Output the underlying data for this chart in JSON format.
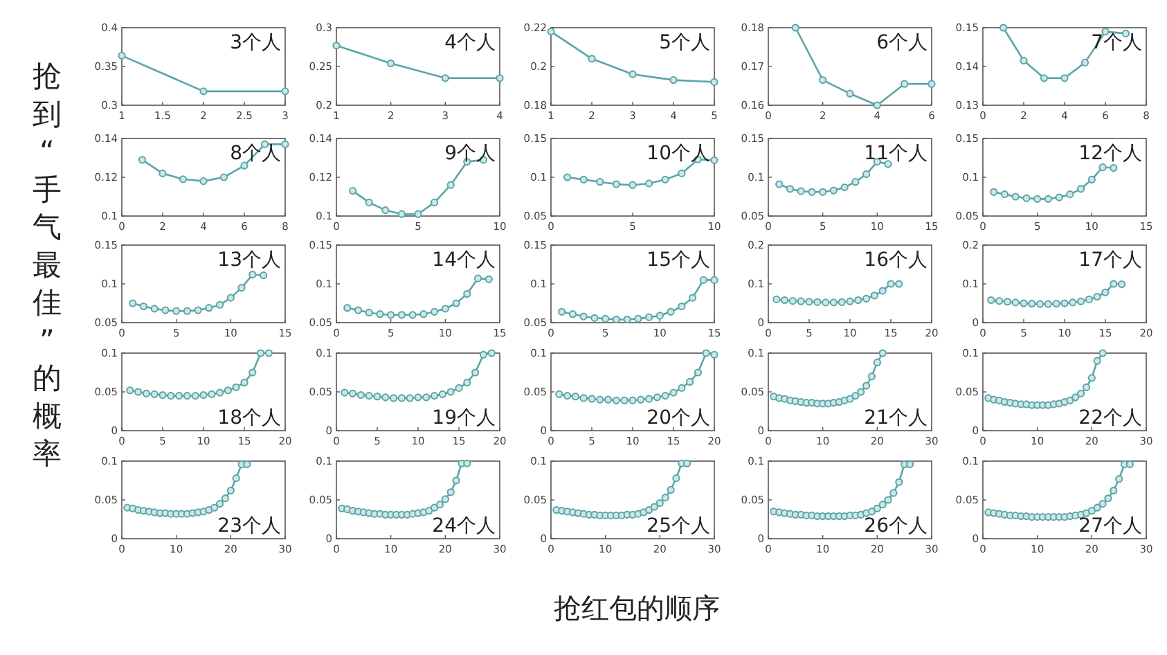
{
  "chart_data": [
    {
      "type": "line",
      "ylabel": "抢到“手气最佳”的概率",
      "annotations": [
        "3个人"
      ],
      "x": [
        1,
        2,
        3
      ],
      "values": [
        0.364,
        0.318,
        0.318
      ],
      "xlim": [
        1,
        3
      ],
      "ylim": [
        0.3,
        0.4
      ],
      "xticks": [
        1,
        1.5,
        2,
        2.5,
        3
      ],
      "yticks": [
        0.3,
        0.35,
        0.4
      ],
      "color": "#5aa6a6",
      "marker": "circle"
    },
    {
      "type": "line",
      "annotations": [
        "4个人"
      ],
      "x": [
        1,
        2,
        3,
        4
      ],
      "values": [
        0.277,
        0.254,
        0.235,
        0.235
      ],
      "xlim": [
        1,
        4
      ],
      "ylim": [
        0.2,
        0.3
      ],
      "xticks": [
        1,
        2,
        3,
        4
      ],
      "yticks": [
        0.2,
        0.25,
        0.3
      ],
      "color": "#5aa6a6",
      "marker": "circle"
    },
    {
      "type": "line",
      "annotations": [
        "5个人"
      ],
      "x": [
        1,
        2,
        3,
        4,
        5
      ],
      "values": [
        0.218,
        0.204,
        0.196,
        0.193,
        0.192
      ],
      "xlim": [
        1,
        5
      ],
      "ylim": [
        0.18,
        0.22
      ],
      "xticks": [
        1,
        2,
        3,
        4,
        5
      ],
      "yticks": [
        0.18,
        0.2,
        0.22
      ],
      "color": "#5aa6a6",
      "marker": "circle"
    },
    {
      "type": "line",
      "annotations": [
        "6个人"
      ],
      "x": [
        1,
        2,
        3,
        4,
        5,
        6
      ],
      "values": [
        0.18,
        0.1665,
        0.163,
        0.16,
        0.1655,
        0.1655
      ],
      "xlim": [
        0,
        6
      ],
      "ylim": [
        0.16,
        0.18
      ],
      "xticks": [
        0,
        2,
        4,
        6
      ],
      "yticks": [
        0.16,
        0.17,
        0.18
      ],
      "color": "#5aa6a6",
      "marker": "circle"
    },
    {
      "type": "line",
      "annotations": [
        "7个人"
      ],
      "x": [
        1,
        2,
        3,
        4,
        5,
        6,
        7
      ],
      "values": [
        0.15,
        0.1415,
        0.137,
        0.137,
        0.141,
        0.149,
        0.1485
      ],
      "xlim": [
        0,
        8
      ],
      "ylim": [
        0.13,
        0.15
      ],
      "xticks": [
        0,
        2,
        4,
        6,
        8
      ],
      "yticks": [
        0.13,
        0.14,
        0.15
      ],
      "color": "#5aa6a6",
      "marker": "circle"
    },
    {
      "type": "line",
      "annotations": [
        "8个人"
      ],
      "x": [
        1,
        2,
        3,
        4,
        5,
        6,
        7,
        8
      ],
      "values": [
        0.129,
        0.122,
        0.119,
        0.118,
        0.12,
        0.126,
        0.137,
        0.137
      ],
      "xlim": [
        0,
        8
      ],
      "ylim": [
        0.1,
        0.14
      ],
      "xticks": [
        0,
        2,
        4,
        6,
        8
      ],
      "yticks": [
        0.1,
        0.12,
        0.14
      ],
      "color": "#5aa6a6",
      "marker": "circle"
    },
    {
      "type": "line",
      "annotations": [
        "9个人"
      ],
      "x": [
        1,
        2,
        3,
        4,
        5,
        6,
        7,
        8,
        9
      ],
      "values": [
        0.113,
        0.107,
        0.103,
        0.101,
        0.101,
        0.107,
        0.116,
        0.128,
        0.129
      ],
      "xlim": [
        0,
        10
      ],
      "ylim": [
        0.1,
        0.14
      ],
      "xticks": [
        0,
        5,
        10
      ],
      "yticks": [
        0.1,
        0.12,
        0.14
      ],
      "color": "#5aa6a6",
      "marker": "circle"
    },
    {
      "type": "line",
      "annotations": [
        "10个人"
      ],
      "x": [
        1,
        2,
        3,
        4,
        5,
        6,
        7,
        8,
        9,
        10
      ],
      "values": [
        0.1,
        0.097,
        0.094,
        0.091,
        0.09,
        0.092,
        0.097,
        0.105,
        0.123,
        0.122
      ],
      "xlim": [
        0,
        10
      ],
      "ylim": [
        0.05,
        0.15
      ],
      "xticks": [
        0,
        5,
        10
      ],
      "yticks": [
        0.05,
        0.1,
        0.15
      ],
      "color": "#5aa6a6",
      "marker": "circle"
    },
    {
      "type": "line",
      "annotations": [
        "11个人"
      ],
      "x": [
        1,
        2,
        3,
        4,
        5,
        6,
        7,
        8,
        9,
        10,
        11
      ],
      "values": [
        0.091,
        0.085,
        0.082,
        0.081,
        0.081,
        0.083,
        0.087,
        0.094,
        0.104,
        0.12,
        0.117
      ],
      "xlim": [
        0,
        15
      ],
      "ylim": [
        0.05,
        0.15
      ],
      "xticks": [
        0,
        5,
        10,
        15
      ],
      "yticks": [
        0.05,
        0.1,
        0.15
      ],
      "color": "#5aa6a6",
      "marker": "circle"
    },
    {
      "type": "line",
      "annotations": [
        "12个人"
      ],
      "x": [
        1,
        2,
        3,
        4,
        5,
        6,
        7,
        8,
        9,
        10,
        11,
        12
      ],
      "values": [
        0.081,
        0.078,
        0.075,
        0.073,
        0.072,
        0.072,
        0.074,
        0.078,
        0.085,
        0.097,
        0.113,
        0.112
      ],
      "xlim": [
        0,
        15
      ],
      "ylim": [
        0.05,
        0.15
      ],
      "xticks": [
        0,
        5,
        10,
        15
      ],
      "yticks": [
        0.05,
        0.1,
        0.15
      ],
      "color": "#5aa6a6",
      "marker": "circle"
    },
    {
      "type": "line",
      "annotations": [
        "13个人"
      ],
      "x": [
        1,
        2,
        3,
        4,
        5,
        6,
        7,
        8,
        9,
        10,
        11,
        12,
        13
      ],
      "values": [
        0.075,
        0.071,
        0.068,
        0.066,
        0.065,
        0.065,
        0.066,
        0.069,
        0.073,
        0.082,
        0.095,
        0.112,
        0.111
      ],
      "xlim": [
        0,
        15
      ],
      "ylim": [
        0.05,
        0.15
      ],
      "xticks": [
        0,
        5,
        10,
        15
      ],
      "yticks": [
        0.05,
        0.1,
        0.15
      ],
      "color": "#5aa6a6",
      "marker": "circle"
    },
    {
      "type": "line",
      "annotations": [
        "14个人"
      ],
      "x": [
        1,
        2,
        3,
        4,
        5,
        6,
        7,
        8,
        9,
        10,
        11,
        12,
        13,
        14
      ],
      "values": [
        0.069,
        0.066,
        0.063,
        0.061,
        0.06,
        0.06,
        0.06,
        0.061,
        0.064,
        0.068,
        0.075,
        0.087,
        0.107,
        0.106
      ],
      "xlim": [
        0,
        15
      ],
      "ylim": [
        0.05,
        0.15
      ],
      "xticks": [
        0,
        5,
        10,
        15
      ],
      "yticks": [
        0.05,
        0.1,
        0.15
      ],
      "color": "#5aa6a6",
      "marker": "circle"
    },
    {
      "type": "line",
      "annotations": [
        "15个人"
      ],
      "x": [
        1,
        2,
        3,
        4,
        5,
        6,
        7,
        8,
        9,
        10,
        11,
        12,
        13,
        14,
        15
      ],
      "values": [
        0.064,
        0.061,
        0.058,
        0.056,
        0.055,
        0.054,
        0.054,
        0.055,
        0.057,
        0.059,
        0.064,
        0.071,
        0.082,
        0.105,
        0.105
      ],
      "xlim": [
        0,
        15
      ],
      "ylim": [
        0.05,
        0.15
      ],
      "xticks": [
        0,
        5,
        10,
        15
      ],
      "yticks": [
        0.05,
        0.1,
        0.15
      ],
      "color": "#5aa6a6",
      "marker": "circle"
    },
    {
      "type": "line",
      "annotations": [
        "16个人"
      ],
      "x": [
        1,
        2,
        3,
        4,
        5,
        6,
        7,
        8,
        9,
        10,
        11,
        12,
        13,
        14,
        15,
        16
      ],
      "values": [
        0.06,
        0.058,
        0.056,
        0.055,
        0.054,
        0.053,
        0.052,
        0.052,
        0.053,
        0.055,
        0.058,
        0.062,
        0.07,
        0.082,
        0.1,
        0.1
      ],
      "xlim": [
        0,
        20
      ],
      "ylim": [
        0,
        0.2
      ],
      "xticks": [
        0,
        5,
        10,
        15,
        20
      ],
      "yticks": [
        0,
        0.1,
        0.2
      ],
      "color": "#5aa6a6",
      "marker": "circle"
    },
    {
      "type": "line",
      "annotations": [
        "17个人"
      ],
      "x": [
        1,
        2,
        3,
        4,
        5,
        6,
        7,
        8,
        9,
        10,
        11,
        12,
        13,
        14,
        15,
        16,
        17
      ],
      "values": [
        0.058,
        0.056,
        0.054,
        0.052,
        0.05,
        0.049,
        0.048,
        0.048,
        0.049,
        0.05,
        0.052,
        0.055,
        0.06,
        0.067,
        0.078,
        0.1,
        0.099
      ],
      "xlim": [
        0,
        20
      ],
      "ylim": [
        0,
        0.2
      ],
      "xticks": [
        0,
        5,
        10,
        15,
        20
      ],
      "yticks": [
        0,
        0.1,
        0.2
      ],
      "color": "#5aa6a6",
      "marker": "circle"
    },
    {
      "type": "line",
      "annotations": [
        "18个人"
      ],
      "x": [
        1,
        2,
        3,
        4,
        5,
        6,
        7,
        8,
        9,
        10,
        11,
        12,
        13,
        14,
        15,
        16,
        17,
        18
      ],
      "values": [
        0.052,
        0.05,
        0.048,
        0.047,
        0.046,
        0.045,
        0.045,
        0.045,
        0.045,
        0.046,
        0.047,
        0.049,
        0.052,
        0.056,
        0.062,
        0.075,
        0.1,
        0.1
      ],
      "xlim": [
        0,
        20
      ],
      "ylim": [
        0,
        0.1
      ],
      "xticks": [
        0,
        5,
        10,
        15,
        20
      ],
      "yticks": [
        0,
        0.05,
        0.1
      ],
      "color": "#5aa6a6",
      "marker": "circle"
    },
    {
      "type": "line",
      "annotations": [
        "19个人"
      ],
      "x": [
        1,
        2,
        3,
        4,
        5,
        6,
        7,
        8,
        9,
        10,
        11,
        12,
        13,
        14,
        15,
        16,
        17,
        18,
        19
      ],
      "values": [
        0.049,
        0.048,
        0.046,
        0.045,
        0.044,
        0.043,
        0.042,
        0.042,
        0.042,
        0.043,
        0.043,
        0.045,
        0.047,
        0.05,
        0.055,
        0.062,
        0.075,
        0.098,
        0.1
      ],
      "xlim": [
        0,
        20
      ],
      "ylim": [
        0,
        0.1
      ],
      "xticks": [
        0,
        5,
        10,
        15,
        20
      ],
      "yticks": [
        0,
        0.05,
        0.1
      ],
      "color": "#5aa6a6",
      "marker": "circle"
    },
    {
      "type": "line",
      "annotations": [
        "20个人"
      ],
      "x": [
        1,
        2,
        3,
        4,
        5,
        6,
        7,
        8,
        9,
        10,
        11,
        12,
        13,
        14,
        15,
        16,
        17,
        18,
        19,
        20
      ],
      "values": [
        0.047,
        0.045,
        0.044,
        0.042,
        0.041,
        0.04,
        0.04,
        0.039,
        0.039,
        0.039,
        0.04,
        0.041,
        0.043,
        0.045,
        0.049,
        0.055,
        0.063,
        0.075,
        0.1,
        0.098
      ],
      "xlim": [
        0,
        20
      ],
      "ylim": [
        0,
        0.1
      ],
      "xticks": [
        0,
        5,
        10,
        15,
        20
      ],
      "yticks": [
        0,
        0.05,
        0.1
      ],
      "color": "#5aa6a6",
      "marker": "circle"
    },
    {
      "type": "line",
      "annotations": [
        "21个人"
      ],
      "x": [
        1,
        2,
        3,
        4,
        5,
        6,
        7,
        8,
        9,
        10,
        11,
        12,
        13,
        14,
        15,
        16,
        17,
        18,
        19,
        20,
        21
      ],
      "values": [
        0.044,
        0.042,
        0.041,
        0.039,
        0.038,
        0.037,
        0.036,
        0.036,
        0.035,
        0.035,
        0.035,
        0.036,
        0.037,
        0.039,
        0.041,
        0.045,
        0.05,
        0.058,
        0.07,
        0.088,
        0.1
      ],
      "xlim": [
        0,
        30
      ],
      "ylim": [
        0,
        0.1
      ],
      "xticks": [
        0,
        10,
        20,
        30
      ],
      "yticks": [
        0,
        0.05,
        0.1
      ],
      "color": "#5aa6a6",
      "marker": "circle"
    },
    {
      "type": "line",
      "annotations": [
        "22个人"
      ],
      "x": [
        1,
        2,
        3,
        4,
        5,
        6,
        7,
        8,
        9,
        10,
        11,
        12,
        13,
        14,
        15,
        16,
        17,
        18,
        19,
        20,
        21,
        22
      ],
      "values": [
        0.042,
        0.04,
        0.039,
        0.037,
        0.036,
        0.035,
        0.034,
        0.034,
        0.033,
        0.033,
        0.033,
        0.033,
        0.034,
        0.035,
        0.037,
        0.039,
        0.043,
        0.048,
        0.056,
        0.068,
        0.09,
        0.1
      ],
      "xlim": [
        0,
        30
      ],
      "ylim": [
        0,
        0.1
      ],
      "xticks": [
        0,
        10,
        20,
        30
      ],
      "yticks": [
        0,
        0.05,
        0.1
      ],
      "color": "#5aa6a6",
      "marker": "circle"
    },
    {
      "type": "line",
      "annotations": [
        "23个人"
      ],
      "x": [
        1,
        2,
        3,
        4,
        5,
        6,
        7,
        8,
        9,
        10,
        11,
        12,
        13,
        14,
        15,
        16,
        17,
        18,
        19,
        20,
        21,
        22,
        23
      ],
      "values": [
        0.04,
        0.039,
        0.037,
        0.036,
        0.035,
        0.034,
        0.033,
        0.033,
        0.032,
        0.032,
        0.032,
        0.032,
        0.033,
        0.034,
        0.035,
        0.037,
        0.04,
        0.045,
        0.052,
        0.062,
        0.078,
        0.096,
        0.096
      ],
      "xlim": [
        0,
        30
      ],
      "ylim": [
        0,
        0.1
      ],
      "xticks": [
        0,
        10,
        20,
        30
      ],
      "yticks": [
        0,
        0.05,
        0.1
      ],
      "color": "#5aa6a6",
      "marker": "circle"
    },
    {
      "type": "line",
      "annotations": [
        "24个人"
      ],
      "x": [
        1,
        2,
        3,
        4,
        5,
        6,
        7,
        8,
        9,
        10,
        11,
        12,
        13,
        14,
        15,
        16,
        17,
        18,
        19,
        20,
        21,
        22,
        23,
        24
      ],
      "values": [
        0.039,
        0.038,
        0.036,
        0.035,
        0.034,
        0.033,
        0.032,
        0.032,
        0.031,
        0.031,
        0.031,
        0.031,
        0.031,
        0.032,
        0.033,
        0.034,
        0.036,
        0.04,
        0.044,
        0.051,
        0.06,
        0.075,
        0.097,
        0.097
      ],
      "xlim": [
        0,
        30
      ],
      "ylim": [
        0,
        0.1
      ],
      "xticks": [
        0,
        10,
        20,
        30
      ],
      "yticks": [
        0,
        0.05,
        0.1
      ],
      "color": "#5aa6a6",
      "marker": "circle"
    },
    {
      "type": "line",
      "xlabel": "抢红包的顺序",
      "annotations": [
        "25个人"
      ],
      "x": [
        1,
        2,
        3,
        4,
        5,
        6,
        7,
        8,
        9,
        10,
        11,
        12,
        13,
        14,
        15,
        16,
        17,
        18,
        19,
        20,
        21,
        22,
        23,
        24,
        25
      ],
      "values": [
        0.037,
        0.036,
        0.035,
        0.034,
        0.033,
        0.032,
        0.031,
        0.031,
        0.03,
        0.03,
        0.03,
        0.03,
        0.03,
        0.031,
        0.031,
        0.032,
        0.034,
        0.037,
        0.041,
        0.046,
        0.053,
        0.063,
        0.078,
        0.097,
        0.097
      ],
      "xlim": [
        0,
        30
      ],
      "ylim": [
        0,
        0.1
      ],
      "xticks": [
        0,
        10,
        20,
        30
      ],
      "yticks": [
        0,
        0.05,
        0.1
      ],
      "color": "#5aa6a6",
      "marker": "circle"
    },
    {
      "type": "line",
      "annotations": [
        "26个人"
      ],
      "x": [
        1,
        2,
        3,
        4,
        5,
        6,
        7,
        8,
        9,
        10,
        11,
        12,
        13,
        14,
        15,
        16,
        17,
        18,
        19,
        20,
        21,
        22,
        23,
        24,
        25,
        26
      ],
      "values": [
        0.035,
        0.034,
        0.033,
        0.032,
        0.031,
        0.031,
        0.03,
        0.03,
        0.029,
        0.029,
        0.029,
        0.029,
        0.029,
        0.029,
        0.03,
        0.03,
        0.031,
        0.033,
        0.035,
        0.039,
        0.044,
        0.05,
        0.059,
        0.073,
        0.096,
        0.096
      ],
      "xlim": [
        0,
        30
      ],
      "ylim": [
        0,
        0.1
      ],
      "xticks": [
        0,
        10,
        20,
        30
      ],
      "yticks": [
        0,
        0.05,
        0.1
      ],
      "color": "#5aa6a6",
      "marker": "circle"
    },
    {
      "type": "line",
      "annotations": [
        "27个人"
      ],
      "x": [
        1,
        2,
        3,
        4,
        5,
        6,
        7,
        8,
        9,
        10,
        11,
        12,
        13,
        14,
        15,
        16,
        17,
        18,
        19,
        20,
        21,
        22,
        23,
        24,
        25,
        26,
        27
      ],
      "values": [
        0.034,
        0.033,
        0.032,
        0.031,
        0.03,
        0.03,
        0.029,
        0.029,
        0.028,
        0.028,
        0.028,
        0.028,
        0.028,
        0.028,
        0.028,
        0.029,
        0.03,
        0.031,
        0.033,
        0.036,
        0.04,
        0.045,
        0.052,
        0.062,
        0.077,
        0.096,
        0.096
      ],
      "xlim": [
        0,
        30
      ],
      "ylim": [
        0,
        0.1
      ],
      "xticks": [
        0,
        10,
        20,
        30
      ],
      "yticks": [
        0,
        0.05,
        0.1
      ],
      "color": "#5aa6a6",
      "marker": "circle"
    }
  ]
}
